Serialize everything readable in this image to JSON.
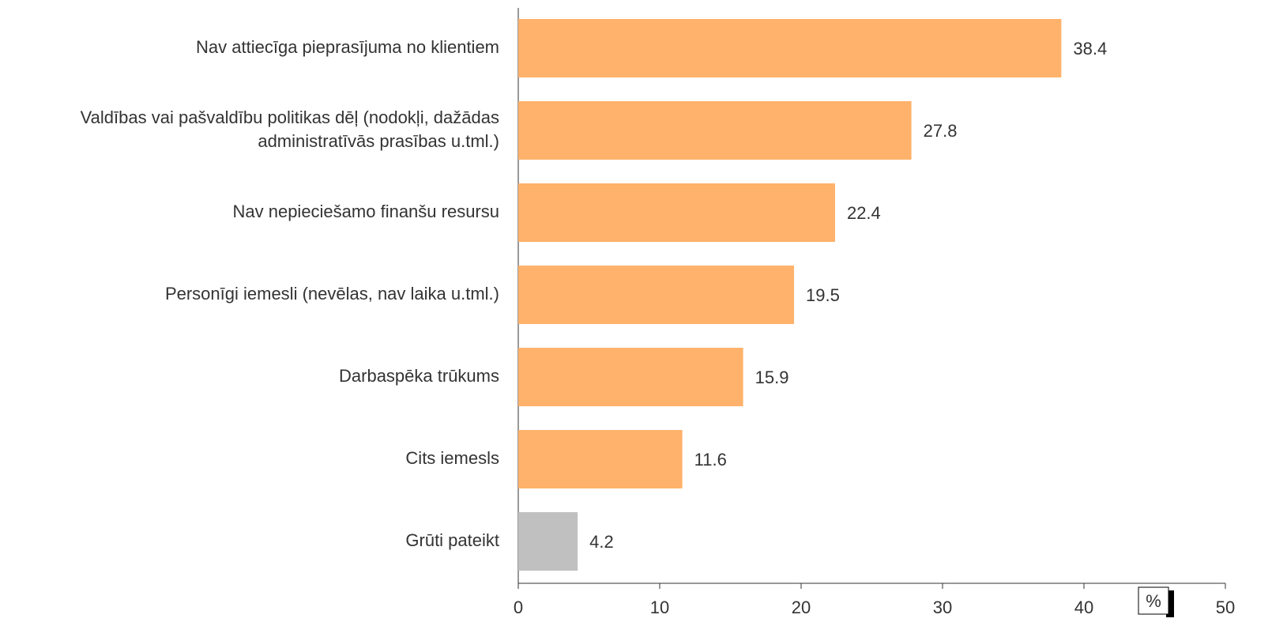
{
  "chart_data": {
    "type": "hbar",
    "categories": [
      "Nav attiecīga pieprasījuma no klientiem",
      "Valdības vai pašvaldību politikas dēļ (nodokļi, dažādas\nadministratīvās prasības u.tml.)",
      "Nav nepieciešamo finanšu resursu",
      "Personīgi iemesli (nevēlas, nav laika u.tml.)",
      "Darbaspēka trūkums",
      "Cits iemesls",
      "Grūti pateikt"
    ],
    "values": [
      38.4,
      27.8,
      22.4,
      19.5,
      15.9,
      11.6,
      4.2
    ],
    "colors": [
      "#ffb26b",
      "#ffb26b",
      "#ffb26b",
      "#ffb26b",
      "#ffb26b",
      "#ffb26b",
      "#c0c0c0"
    ],
    "xlim": [
      0,
      50
    ],
    "xticks": [
      0,
      10,
      20,
      30,
      40,
      50
    ],
    "unit_label": "%"
  }
}
